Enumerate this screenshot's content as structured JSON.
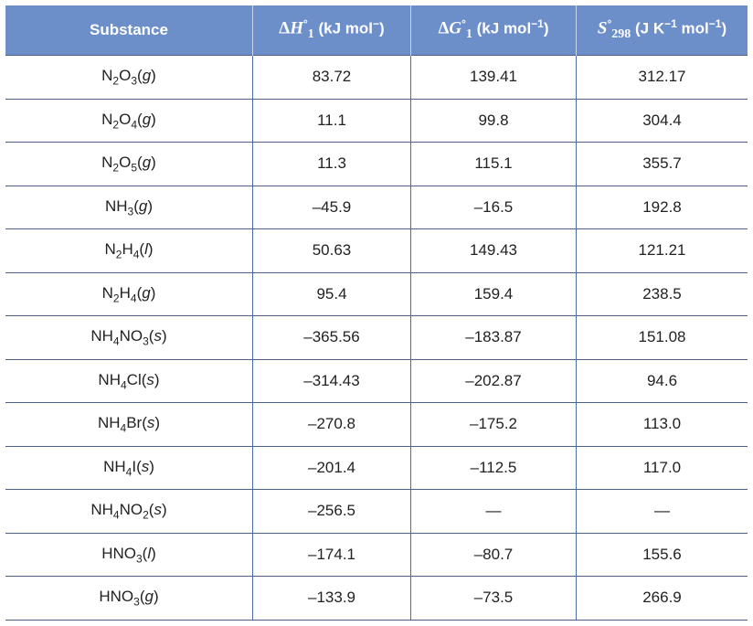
{
  "table": {
    "header": [
      [
        {
          "t": "Substance"
        }
      ],
      [
        {
          "s": "Δ"
        },
        {
          "m": "H"
        },
        {
          "sup": "°"
        },
        {
          "sub": "1"
        },
        {
          "t": " (kJ mol"
        },
        {
          "sup": "−"
        },
        {
          "t": ")"
        }
      ],
      [
        {
          "s": "Δ"
        },
        {
          "m": "G"
        },
        {
          "sup": "°"
        },
        {
          "sub": "1"
        },
        {
          "t": " (kJ mol"
        },
        {
          "sup": "−1"
        },
        {
          "t": ")"
        }
      ],
      [
        {
          "m": "S"
        },
        {
          "sup": "°"
        },
        {
          "sub": "298"
        },
        {
          "t": " (J K"
        },
        {
          "sup": "−1"
        },
        {
          "t": " mol"
        },
        {
          "sup": "−1"
        },
        {
          "t": ")"
        }
      ]
    ],
    "rows": [
      [
        [
          {
            "t": "N"
          },
          {
            "sub": "2"
          },
          {
            "t": "O"
          },
          {
            "sub": "3"
          },
          {
            "t": "("
          },
          {
            "i": "g"
          },
          {
            "t": ")"
          }
        ],
        "83.72",
        "139.41",
        "312.17"
      ],
      [
        [
          {
            "t": "N"
          },
          {
            "sub": "2"
          },
          {
            "t": "O"
          },
          {
            "sub": "4"
          },
          {
            "t": "("
          },
          {
            "i": "g"
          },
          {
            "t": ")"
          }
        ],
        "11.1",
        "99.8",
        "304.4"
      ],
      [
        [
          {
            "t": "N"
          },
          {
            "sub": "2"
          },
          {
            "t": "O"
          },
          {
            "sub": "5"
          },
          {
            "t": "("
          },
          {
            "i": "g"
          },
          {
            "t": ")"
          }
        ],
        "11.3",
        "115.1",
        "355.7"
      ],
      [
        [
          {
            "t": "NH"
          },
          {
            "sub": "3"
          },
          {
            "t": "("
          },
          {
            "i": "g"
          },
          {
            "t": ")"
          }
        ],
        "–45.9",
        "–16.5",
        "192.8"
      ],
      [
        [
          {
            "t": "N"
          },
          {
            "sub": "2"
          },
          {
            "t": "H"
          },
          {
            "sub": "4"
          },
          {
            "t": "("
          },
          {
            "i": "l"
          },
          {
            "t": ")"
          }
        ],
        "50.63",
        "149.43",
        "121.21"
      ],
      [
        [
          {
            "t": "N"
          },
          {
            "sub": "2"
          },
          {
            "t": "H"
          },
          {
            "sub": "4"
          },
          {
            "t": "("
          },
          {
            "i": "g"
          },
          {
            "t": ")"
          }
        ],
        "95.4",
        "159.4",
        "238.5"
      ],
      [
        [
          {
            "t": "NH"
          },
          {
            "sub": "4"
          },
          {
            "t": "NO"
          },
          {
            "sub": "3"
          },
          {
            "t": "("
          },
          {
            "i": "s"
          },
          {
            "t": ")"
          }
        ],
        "–365.56",
        "–183.87",
        "151.08"
      ],
      [
        [
          {
            "t": "NH"
          },
          {
            "sub": "4"
          },
          {
            "t": "Cl("
          },
          {
            "i": "s"
          },
          {
            "t": ")"
          }
        ],
        "–314.43",
        "–202.87",
        "94.6"
      ],
      [
        [
          {
            "t": "NH"
          },
          {
            "sub": "4"
          },
          {
            "t": "Br("
          },
          {
            "i": "s"
          },
          {
            "t": ")"
          }
        ],
        "–270.8",
        "–175.2",
        "113.0"
      ],
      [
        [
          {
            "t": "NH"
          },
          {
            "sub": "4"
          },
          {
            "t": "I("
          },
          {
            "i": "s"
          },
          {
            "t": ")"
          }
        ],
        "–201.4",
        "–112.5",
        "117.0"
      ],
      [
        [
          {
            "t": "NH"
          },
          {
            "sub": "4"
          },
          {
            "t": "NO"
          },
          {
            "sub": "2"
          },
          {
            "t": "("
          },
          {
            "i": "s"
          },
          {
            "t": ")"
          }
        ],
        "–256.5",
        "—",
        "—"
      ],
      [
        [
          {
            "t": "HNO"
          },
          {
            "sub": "3"
          },
          {
            "t": "("
          },
          {
            "i": "l"
          },
          {
            "t": ")"
          }
        ],
        "–174.1",
        "–80.7",
        "155.6"
      ],
      [
        [
          {
            "t": "HNO"
          },
          {
            "sub": "3"
          },
          {
            "t": "("
          },
          {
            "i": "g"
          },
          {
            "t": ")"
          }
        ],
        "–133.9",
        "–73.5",
        "266.9"
      ]
    ]
  }
}
